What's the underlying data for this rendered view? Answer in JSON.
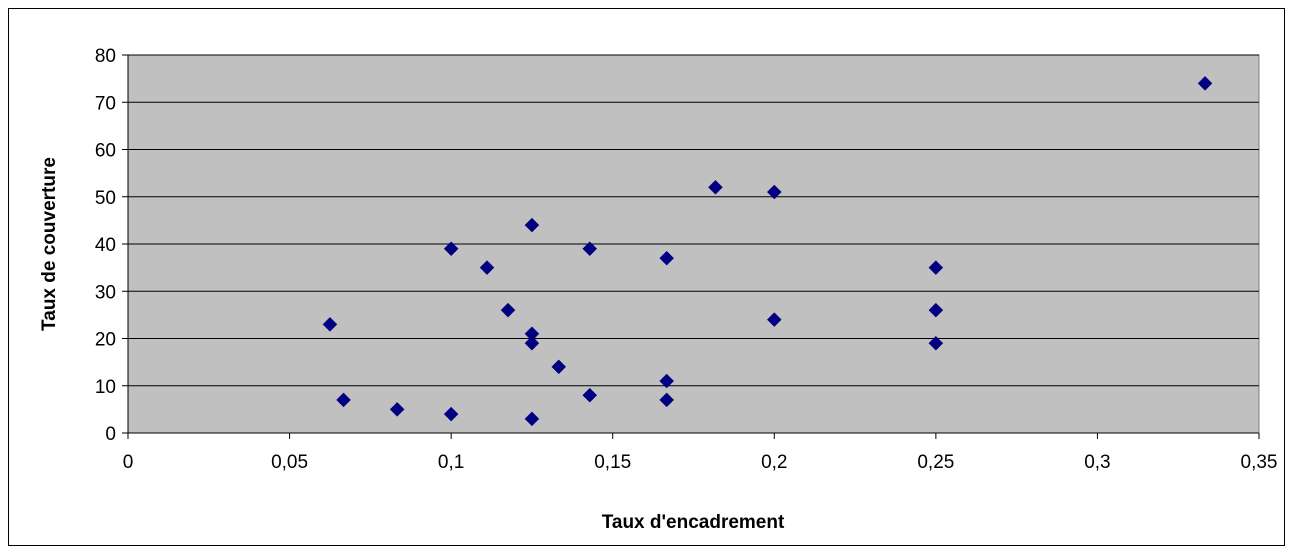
{
  "chart_data": {
    "type": "scatter",
    "title": "",
    "xlabel": "Taux d'encadrement",
    "ylabel": "Taux de couverture",
    "xlim": [
      0,
      0.35
    ],
    "ylim": [
      0,
      80
    ],
    "x_ticks": [
      0,
      0.05,
      0.1,
      0.15,
      0.2,
      0.25,
      0.3,
      0.35
    ],
    "x_tick_labels": [
      "0",
      "0,05",
      "0,1",
      "0,15",
      "0,2",
      "0,25",
      "0,3",
      "0,35"
    ],
    "y_ticks": [
      0,
      10,
      20,
      30,
      40,
      50,
      60,
      70,
      80
    ],
    "y_tick_labels": [
      "0",
      "10",
      "20",
      "30",
      "40",
      "50",
      "60",
      "70",
      "80"
    ],
    "grid": "horizontal",
    "legend": "none",
    "colors": {
      "plot_bg": "#c0c0c0",
      "marker": "#000080",
      "grid": "#000000"
    },
    "series": [
      {
        "points": [
          {
            "x": 0.0625,
            "y": 23
          },
          {
            "x": 0.0667,
            "y": 7
          },
          {
            "x": 0.0833,
            "y": 5
          },
          {
            "x": 0.1,
            "y": 4
          },
          {
            "x": 0.1,
            "y": 39
          },
          {
            "x": 0.1111,
            "y": 35
          },
          {
            "x": 0.1176,
            "y": 26
          },
          {
            "x": 0.125,
            "y": 44
          },
          {
            "x": 0.125,
            "y": 21
          },
          {
            "x": 0.125,
            "y": 19
          },
          {
            "x": 0.125,
            "y": 3
          },
          {
            "x": 0.1333,
            "y": 14
          },
          {
            "x": 0.1429,
            "y": 39
          },
          {
            "x": 0.1429,
            "y": 8
          },
          {
            "x": 0.1667,
            "y": 37
          },
          {
            "x": 0.1667,
            "y": 11
          },
          {
            "x": 0.1667,
            "y": 7
          },
          {
            "x": 0.1818,
            "y": 52
          },
          {
            "x": 0.2,
            "y": 51
          },
          {
            "x": 0.2,
            "y": 24
          },
          {
            "x": 0.25,
            "y": 35
          },
          {
            "x": 0.25,
            "y": 26
          },
          {
            "x": 0.25,
            "y": 19
          },
          {
            "x": 0.3333,
            "y": 74
          }
        ]
      }
    ]
  }
}
